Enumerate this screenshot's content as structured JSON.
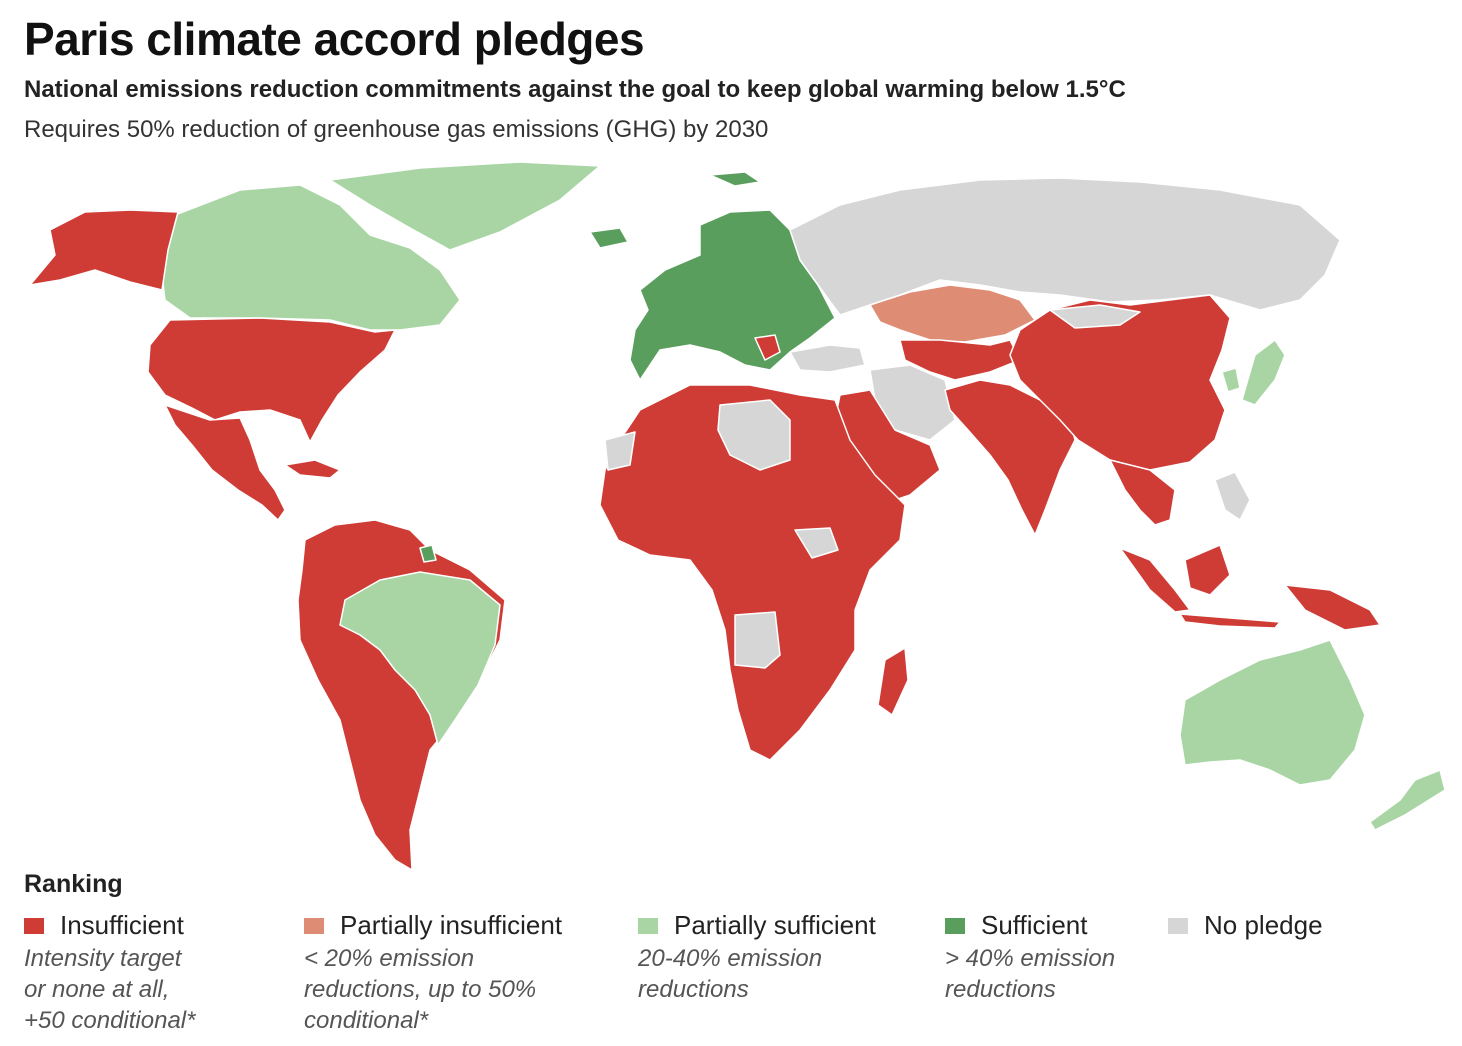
{
  "header": {
    "title": "Paris climate accord pledges",
    "subtitle": "National emissions reduction commitments against the goal to keep global warming below 1.5°C",
    "note": "Requires 50% reduction of greenhouse gas emissions (GHG) by 2030"
  },
  "colors": {
    "insufficient": "#cf3b35",
    "partially_insufficient": "#df8c74",
    "partially_sufficient": "#a9d5a5",
    "sufficient": "#5a9e5e",
    "no_pledge": "#d6d6d6"
  },
  "legend": {
    "title": "Ranking",
    "items": [
      {
        "label": "Insufficient",
        "desc": "Intensity target\nor none at all,\n+50 conditional*"
      },
      {
        "label": "Partially insufficient",
        "desc": "< 20% emission\nreductions, up to 50%\nconditional*"
      },
      {
        "label": "Partially sufficient",
        "desc": "20-40% emission\nreductions"
      },
      {
        "label": "Sufficient",
        "desc": "> 40% emission\nreductions"
      },
      {
        "label": "No pledge",
        "desc": ""
      }
    ]
  }
}
